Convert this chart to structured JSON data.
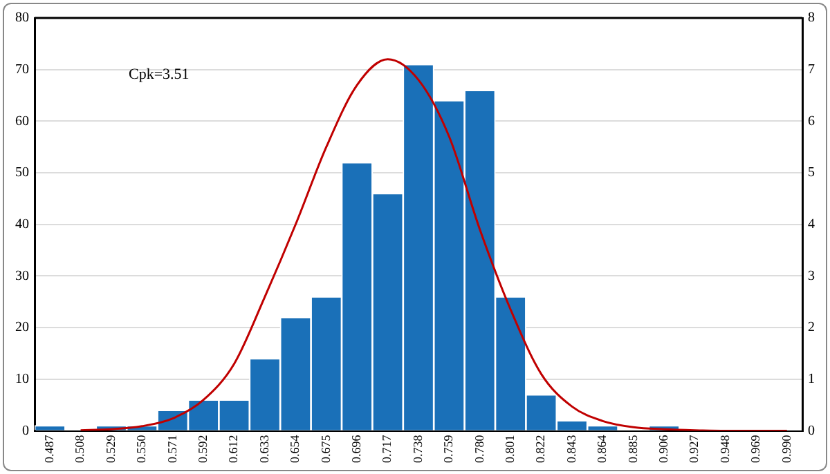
{
  "chart_data": {
    "type": "bar",
    "categories": [
      "0.487",
      "0.508",
      "0.529",
      "0.550",
      "0.571",
      "0.592",
      "0.612",
      "0.633",
      "0.654",
      "0.675",
      "0.696",
      "0.717",
      "0.738",
      "0.759",
      "0.780",
      "0.801",
      "0.822",
      "0.843",
      "0.864",
      "0.885",
      "0.906",
      "0.927",
      "0.948",
      "0.969",
      "0.990"
    ],
    "series": [
      {
        "color": "#1a70b8",
        "values": [
          1,
          0,
          1,
          1,
          4,
          6,
          6,
          14,
          22,
          26,
          52,
          46,
          71,
          64,
          66,
          26,
          7,
          2,
          1,
          0,
          1,
          0,
          0,
          0,
          0
        ]
      },
      {
        "type": "line",
        "axis": "y2",
        "color": "#c00000",
        "values": [
          null,
          0.01,
          0.03,
          0.09,
          0.24,
          0.6,
          1.3,
          2.6,
          4.0,
          5.5,
          6.7,
          7.2,
          6.8,
          5.7,
          3.9,
          2.35,
          1.1,
          0.47,
          0.19,
          0.07,
          0.03,
          0.01,
          0,
          0,
          0
        ]
      }
    ],
    "ylim": [
      0,
      80
    ],
    "yticks": [
      0,
      10,
      20,
      30,
      40,
      50,
      60,
      70,
      80
    ],
    "y2lim": [
      0,
      8
    ],
    "y2ticks": [
      0,
      1,
      2,
      3,
      4,
      5,
      6,
      7,
      8
    ],
    "grid": "y",
    "legend": false,
    "marker": "none",
    "line_style": "solid",
    "annotations": [
      "Cpk=3.51"
    ]
  }
}
